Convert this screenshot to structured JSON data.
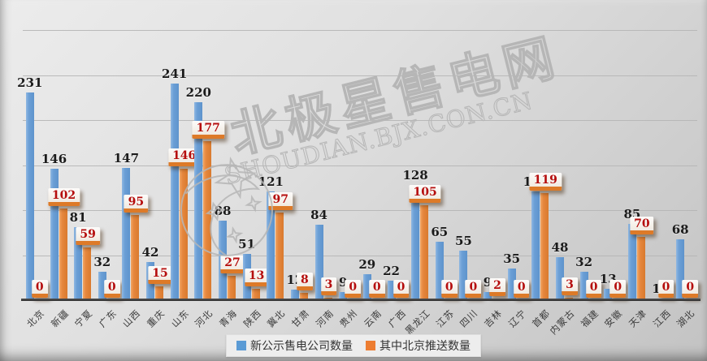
{
  "watermark": {
    "line1": "北极星售电网",
    "line2": "SHOUDIAN.BJX.CON.CN"
  },
  "legend": {
    "series1": "新公示售电公司数量",
    "series2": "其中北京推送数量"
  },
  "colors": {
    "blue_bar": "#6b9fd6",
    "orange_bar": "#e6873e",
    "blue_label": "#1b1b1b",
    "orange_label": "#b50d0d",
    "gridline": "#b5b5b5",
    "baseline": "#3f3f3f",
    "background": "#d9d9d9"
  },
  "chart_data": {
    "type": "bar",
    "title": "",
    "xlabel": "",
    "ylabel": "",
    "categories": [
      "北京",
      "新疆",
      "宁夏",
      "广东",
      "山西",
      "重庆",
      "山东",
      "河北",
      "青海",
      "陕西",
      "冀北",
      "甘肃",
      "河南",
      "贵州",
      "云南",
      "广西",
      "黑龙江",
      "江苏",
      "四川",
      "吉林",
      "辽宁",
      "首都",
      "内蒙古",
      "福建",
      "安徽",
      "天津",
      "江西",
      "湖北"
    ],
    "series": [
      {
        "name": "新公示售电公司数量",
        "color": "#6b9fd6",
        "values": [
          231,
          146,
          81,
          32,
          147,
          42,
          241,
          220,
          88,
          51,
          121,
          12,
          84,
          9,
          29,
          22,
          128,
          65,
          55,
          9,
          35,
          121,
          48,
          32,
          13,
          85,
          1,
          68
        ]
      },
      {
        "name": "其中北京推送数量",
        "color": "#e6873e",
        "values": [
          0,
          102,
          59,
          0,
          95,
          15,
          146,
          177,
          27,
          13,
          97,
          8,
          3,
          0,
          0,
          0,
          105,
          0,
          0,
          2,
          0,
          119,
          3,
          0,
          0,
          70,
          0,
          0
        ]
      }
    ],
    "ylim": [
      0,
      300
    ],
    "gridline_step": 50,
    "grid": "horizontal-only",
    "y_axis_labels_visible": false,
    "data_labels": "on",
    "legend_position": "bottom-center"
  }
}
